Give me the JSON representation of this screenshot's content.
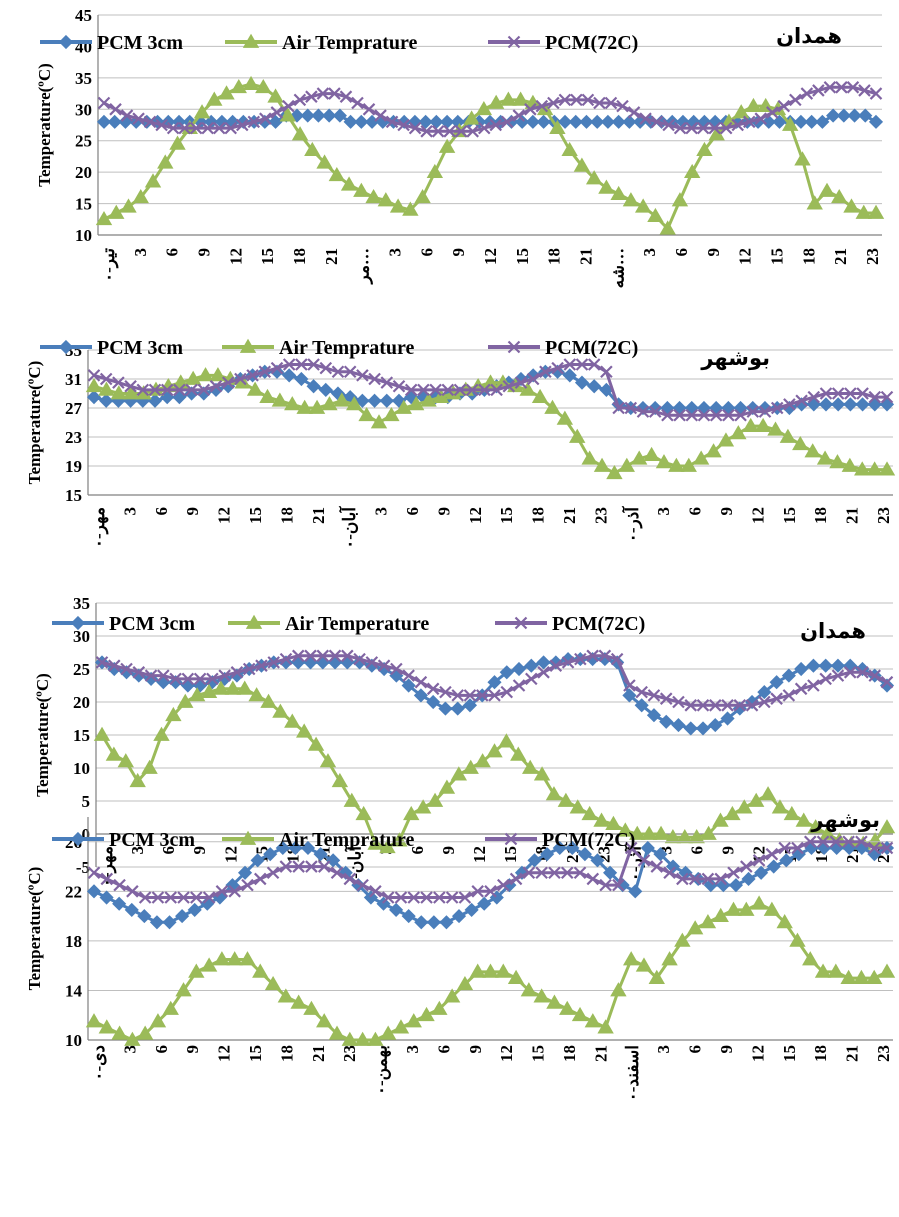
{
  "colors": {
    "pcm3": "#4a7ebb",
    "air": "#9bbb59",
    "pcm72": "#8064a2",
    "grid": "#bfbfbf",
    "axis": "#808080"
  },
  "chart_data": [
    {
      "type": "line",
      "title": "همدان",
      "xlabel": "",
      "ylabel": "Temperature(ºC)",
      "ylim": [
        10,
        45
      ],
      "yticks": [
        "10",
        "15",
        "20",
        "25",
        "30",
        "35",
        "40",
        "45"
      ],
      "grid": true,
      "legend_position": "top",
      "xticks": [
        "تیر-۰",
        "3",
        "6",
        "9",
        "12",
        "15",
        "18",
        "21",
        "مر…",
        "3",
        "6",
        "9",
        "12",
        "15",
        "18",
        "21",
        "شه…",
        "3",
        "6",
        "9",
        "12",
        "15",
        "18",
        "21",
        "23"
      ],
      "series": [
        {
          "name": "PCM 3cm",
          "values": [
            28,
            28,
            28,
            28,
            28,
            28,
            28,
            28,
            28,
            28,
            28,
            28,
            28,
            28,
            28,
            28,
            28,
            29,
            29,
            29,
            29,
            29,
            29,
            28,
            28,
            28,
            28,
            28,
            28,
            28,
            28,
            28,
            28,
            28,
            28,
            28,
            28,
            28,
            28,
            28,
            28,
            28,
            28,
            28,
            28,
            28,
            28,
            28,
            28,
            28,
            28,
            28,
            28,
            28,
            28,
            28,
            28,
            28,
            28,
            28,
            28,
            28,
            28,
            28,
            28,
            28,
            28,
            28,
            29,
            29,
            29,
            29,
            28
          ]
        },
        {
          "name": "Air Temprature",
          "values": [
            12.5,
            13.5,
            14.5,
            16,
            18.5,
            21.5,
            24.5,
            27,
            29.5,
            31.5,
            32.5,
            33.5,
            34,
            33.5,
            32,
            29,
            26,
            23.5,
            21.5,
            19.5,
            18,
            17,
            16,
            15.5,
            14.5,
            14,
            16,
            20,
            24,
            26.5,
            28.5,
            30,
            31,
            31.5,
            31.5,
            31,
            30,
            27,
            23.5,
            21,
            19,
            17.5,
            16.5,
            15.5,
            14.5,
            13,
            11,
            15.5,
            20,
            23.5,
            26,
            28,
            29.5,
            30.5,
            30.5,
            30,
            27.5,
            22,
            15,
            17,
            16,
            14.5,
            13.5,
            13.5
          ]
        },
        {
          "name": "PCM(72C)",
          "values": [
            31,
            30,
            29,
            28.5,
            28,
            27.5,
            27,
            27,
            27,
            27,
            27,
            27,
            27.5,
            28,
            28.5,
            29.5,
            30.5,
            31.5,
            32,
            32.5,
            32.5,
            32,
            31,
            30,
            29,
            28,
            27.5,
            27,
            26.5,
            26.5,
            26.5,
            26.5,
            26.5,
            27,
            27.5,
            28,
            29,
            30,
            30.5,
            31,
            31.5,
            31.5,
            31.5,
            31,
            31,
            30.5,
            29.5,
            28.5,
            28,
            27.5,
            27,
            27,
            27,
            27,
            27,
            27.5,
            28,
            28.5,
            29.5,
            30.5,
            31.5,
            32.5,
            33,
            33.5,
            33.5,
            33.5,
            33,
            32.5
          ]
        }
      ]
    },
    {
      "type": "line",
      "title": "بوشهر",
      "xlabel": "",
      "ylabel": "Temperature(ºC)",
      "ylim": [
        15,
        35
      ],
      "yticks": [
        "15",
        "19",
        "23",
        "27",
        "31",
        "35"
      ],
      "grid": true,
      "legend_position": "top",
      "xticks": [
        "مهر-۰",
        "3",
        "6",
        "9",
        "12",
        "15",
        "18",
        "21",
        "آبان-۰",
        "3",
        "6",
        "9",
        "12",
        "15",
        "18",
        "21",
        "23",
        "آذر-۰",
        "3",
        "6",
        "9",
        "12",
        "15",
        "18",
        "21",
        "23"
      ],
      "series": [
        {
          "name": "PCM 3cm",
          "values": [
            28.5,
            28,
            28,
            28,
            28,
            28,
            28.5,
            28.5,
            29,
            29,
            29.5,
            30,
            31,
            31.5,
            32,
            32,
            31.5,
            31,
            30,
            29.5,
            29,
            28.5,
            28,
            28,
            28,
            28,
            28.5,
            28.5,
            28.5,
            28.5,
            29,
            29,
            29.5,
            30,
            30.5,
            31,
            31.5,
            32,
            32,
            31.5,
            30.5,
            30,
            29.5,
            27.5,
            27,
            27,
            27,
            27,
            27,
            27,
            27,
            27,
            27,
            27,
            27,
            27,
            27,
            27,
            27.5,
            27.5,
            27.5,
            27.5,
            27.5,
            27.5,
            27.5,
            27.5
          ]
        },
        {
          "name": "Air Temprature",
          "values": [
            30,
            29.5,
            29,
            29,
            29,
            29.5,
            30,
            30.5,
            31,
            31.5,
            31.5,
            31,
            30.5,
            29.5,
            28.5,
            28,
            27.5,
            27,
            27,
            27.5,
            28,
            27.5,
            26,
            25,
            26,
            27,
            27.5,
            28,
            28.5,
            29,
            29.5,
            30,
            30.5,
            30.5,
            30,
            29.5,
            28.5,
            27,
            25.5,
            23,
            20,
            19,
            18,
            19,
            20,
            20.5,
            19.5,
            19,
            19,
            20,
            21,
            22.5,
            23.5,
            24.5,
            24.5,
            24,
            23,
            22,
            21,
            20,
            19.5,
            19,
            18.5,
            18.5,
            18.5
          ]
        },
        {
          "name": "PCM(72C)",
          "values": [
            31.5,
            31,
            30.5,
            30,
            29.5,
            29.5,
            29.5,
            29.5,
            29.5,
            29.5,
            30,
            30.5,
            31,
            31.5,
            32,
            32.5,
            33,
            33,
            33,
            32.5,
            32,
            32,
            31.5,
            31,
            30.5,
            30,
            29.5,
            29.5,
            29.5,
            29.5,
            29.5,
            29.5,
            29.5,
            29.5,
            30,
            30.5,
            31,
            32,
            32.5,
            33,
            33,
            33,
            32,
            27,
            27,
            26.5,
            26.5,
            26,
            26,
            26,
            26,
            26,
            26,
            26,
            26.5,
            26.5,
            27,
            27.5,
            28,
            28.5,
            29,
            29,
            29,
            29,
            28.5,
            28.5
          ]
        }
      ]
    },
    {
      "type": "line",
      "title": "همدان",
      "xlabel": "",
      "ylabel": "Temperature(ºC)",
      "ylim": [
        -5,
        35
      ],
      "yticks": [
        "-5",
        "0",
        "5",
        "10",
        "15",
        "20",
        "25",
        "30",
        "35"
      ],
      "grid": true,
      "legend_position": "top",
      "xticks": [
        "مهر-۰",
        "3",
        "6",
        "9",
        "12",
        "15",
        "18",
        "21",
        "آبان-۰",
        "3",
        "6",
        "9",
        "12",
        "15",
        "18",
        "21",
        "23",
        "آذر-۰",
        "3",
        "6",
        "9",
        "12",
        "15",
        "18",
        "21",
        "23"
      ],
      "series": [
        {
          "name": "PCM 3cm",
          "values": [
            26,
            25,
            24.5,
            24,
            23.5,
            23,
            23,
            22.5,
            22.5,
            23,
            23.5,
            24,
            25,
            25.5,
            26,
            26,
            26,
            26,
            26,
            26,
            26,
            26,
            25.5,
            25,
            24,
            22.5,
            21,
            20,
            19,
            19,
            19.5,
            21,
            23,
            24.5,
            25,
            25.5,
            26,
            26,
            26.5,
            26.5,
            26.5,
            26.5,
            26,
            21,
            19.5,
            18,
            17,
            16.5,
            16,
            16,
            16.5,
            17.5,
            19,
            20,
            21.5,
            23,
            24,
            25,
            25.5,
            25.5,
            25.5,
            25.5,
            25,
            24,
            22.5
          ]
        },
        {
          "name": "Air Temperature",
          "values": [
            15,
            12,
            11,
            8,
            10,
            15,
            18,
            20,
            21,
            21.5,
            22,
            22,
            22,
            21,
            20,
            18.5,
            17,
            15.5,
            13.5,
            11,
            8,
            5,
            3,
            -1.5,
            -2,
            -1,
            3,
            4,
            5,
            7,
            9,
            10,
            11,
            12.5,
            14,
            12,
            10,
            9,
            6,
            5,
            4,
            3,
            2,
            1.5,
            0.5,
            0,
            0,
            0,
            -0.5,
            -0.5,
            -0.5,
            0,
            2,
            3,
            4,
            5,
            6,
            4,
            3,
            2,
            1,
            0,
            -1,
            -1.5,
            -1.5,
            -1,
            1
          ]
        },
        {
          "name": "PCM(72C)",
          "values": [
            26,
            25.5,
            25,
            24.5,
            24,
            24,
            23.5,
            23.5,
            23.5,
            23.5,
            24,
            24.5,
            25,
            25.5,
            26,
            26.5,
            27,
            27,
            27,
            27,
            27,
            26.5,
            26,
            25.5,
            25,
            24,
            23,
            22,
            21.5,
            21,
            21,
            21,
            21,
            21.5,
            22.5,
            23.5,
            24.5,
            25.5,
            26,
            26.5,
            27,
            27,
            26.5,
            22.5,
            21.5,
            21,
            20.5,
            20,
            19.5,
            19.5,
            19.5,
            19.5,
            19.5,
            19.5,
            20,
            20.5,
            21,
            22,
            22.5,
            23.5,
            24,
            24.5,
            24.5,
            24,
            23
          ]
        }
      ]
    },
    {
      "type": "line",
      "title": "بوشهر",
      "xlabel": "",
      "ylabel": "Temperature(ºC)",
      "ylim": [
        10,
        28
      ],
      "yticks": [
        "10",
        "14",
        "18",
        "22",
        "26"
      ],
      "grid": true,
      "legend_position": "top",
      "xticks": [
        "دی-۰",
        "3",
        "6",
        "9",
        "12",
        "15",
        "18",
        "21",
        "23",
        "بهمن-۰",
        "3",
        "6",
        "9",
        "12",
        "15",
        "18",
        "21",
        "اسفند-۰",
        "3",
        "6",
        "9",
        "12",
        "15",
        "18",
        "21",
        "23"
      ],
      "series": [
        {
          "name": "PCM 3cm",
          "values": [
            22,
            21.5,
            21,
            20.5,
            20,
            19.5,
            19.5,
            20,
            20.5,
            21,
            21.5,
            22.5,
            23.5,
            24.5,
            25,
            25.5,
            25.5,
            25.5,
            25,
            24.5,
            23.5,
            22.5,
            21.5,
            21,
            20.5,
            20,
            19.5,
            19.5,
            19.5,
            20,
            20.5,
            21,
            21.5,
            22.5,
            23.5,
            24.5,
            25,
            25.5,
            25.5,
            25,
            24.5,
            23.5,
            22.5,
            22,
            25.5,
            25,
            24,
            23.5,
            23,
            22.5,
            22.5,
            22.5,
            23,
            23.5,
            24,
            24.5,
            25,
            25.5,
            25.5,
            25.5,
            25.5,
            25.5,
            25,
            25.5
          ]
        },
        {
          "name": "Air Temprature",
          "values": [
            11.5,
            11,
            10.5,
            10,
            10.5,
            11.5,
            12.5,
            14,
            15.5,
            16,
            16.5,
            16.5,
            16.5,
            15.5,
            14.5,
            13.5,
            13,
            12.5,
            11.5,
            10.5,
            10,
            10,
            10,
            10.5,
            11,
            11.5,
            12,
            12.5,
            13.5,
            14.5,
            15.5,
            15.5,
            15.5,
            15,
            14,
            13.5,
            13,
            12.5,
            12,
            11.5,
            11,
            14,
            16.5,
            16,
            15,
            16.5,
            18,
            19,
            19.5,
            20,
            20.5,
            20.5,
            21,
            20.5,
            19.5,
            18,
            16.5,
            15.5,
            15.5,
            15,
            15,
            15,
            15.5
          ]
        },
        {
          "name": "PCM(72C)",
          "values": [
            23.5,
            23,
            22.5,
            22,
            21.5,
            21.5,
            21.5,
            21.5,
            21.5,
            21.5,
            22,
            22,
            22.5,
            23,
            23.5,
            24,
            24,
            24,
            24,
            23.5,
            23,
            22.5,
            22,
            21.5,
            21.5,
            21.5,
            21.5,
            21.5,
            21.5,
            21.5,
            22,
            22,
            22.5,
            23,
            23.5,
            23.5,
            23.5,
            23.5,
            23.5,
            23,
            22.5,
            22.5,
            25.5,
            24.5,
            24,
            23.5,
            23,
            23,
            23,
            23,
            23.5,
            24,
            24.5,
            25,
            25.5,
            25.5,
            26,
            26,
            26,
            26,
            26,
            25.5,
            25.5
          ]
        }
      ]
    }
  ]
}
